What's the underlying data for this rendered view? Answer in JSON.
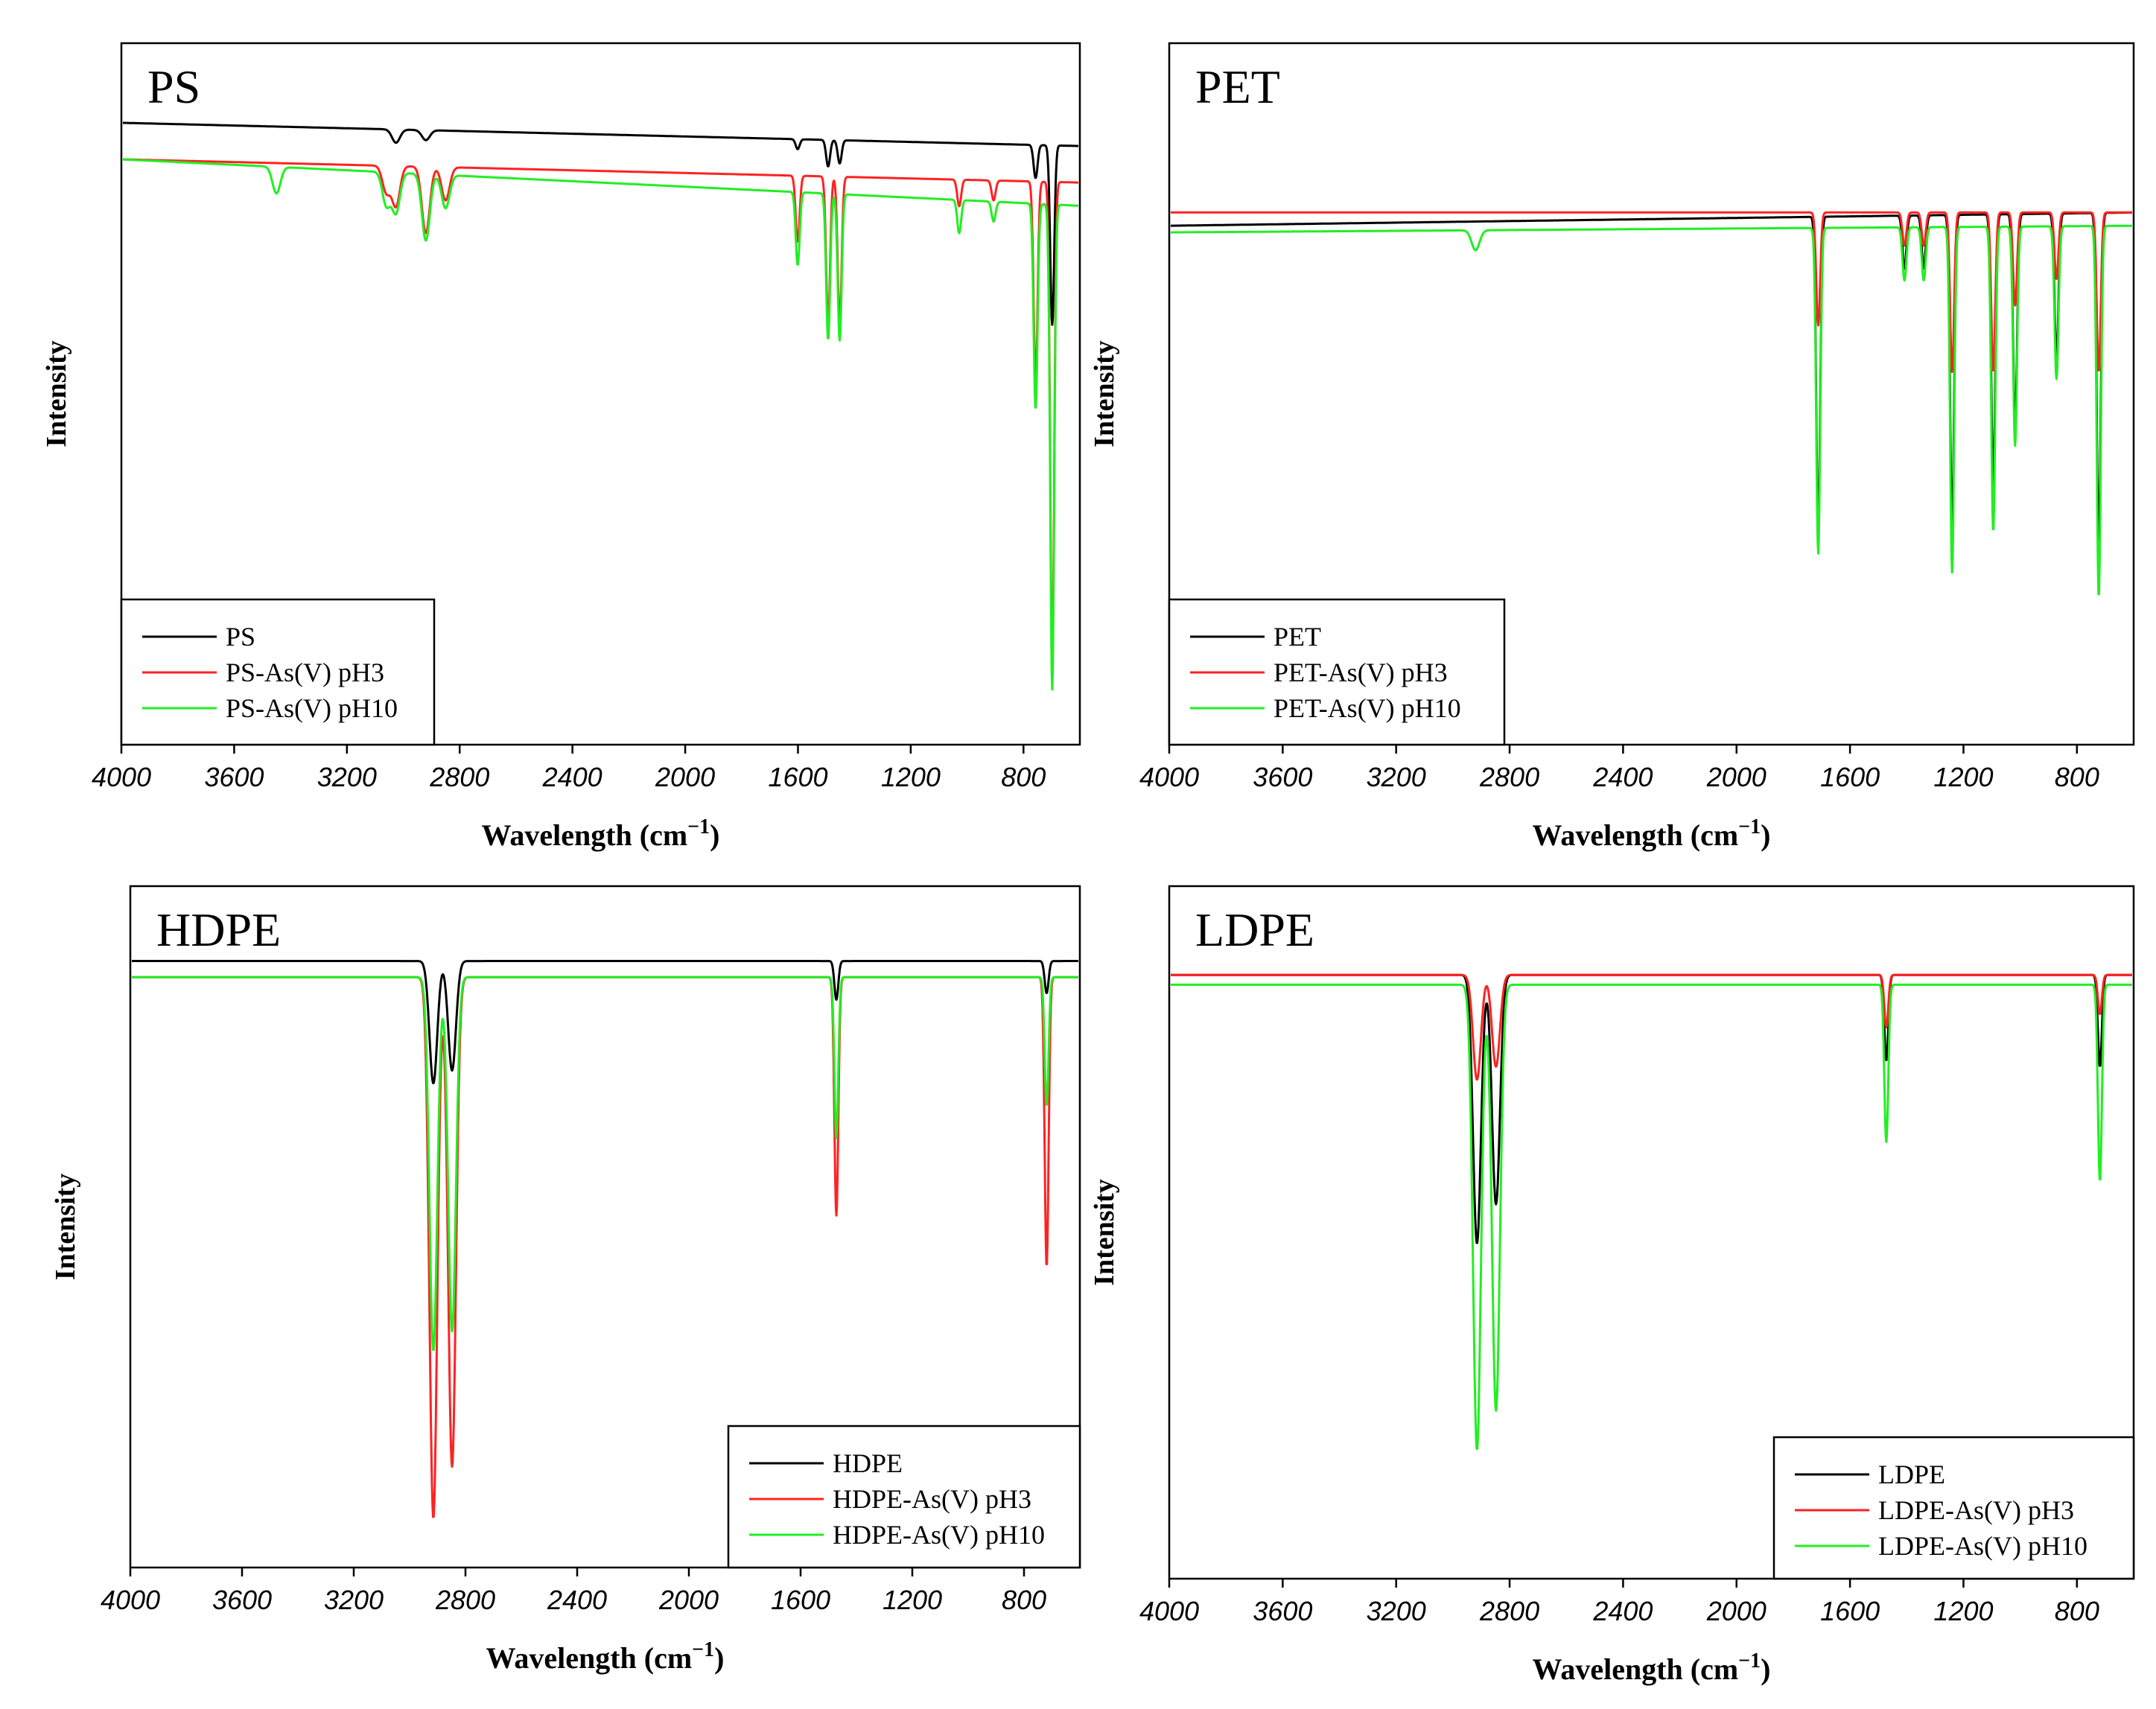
{
  "colors": {
    "pristine": "#000000",
    "ph3": "#ff2222",
    "ph10": "#22ee22"
  },
  "chart_data": [
    {
      "type": "line",
      "title": "PS",
      "xlabel": "Wavelength (cm",
      "xlabel_sup": "−1",
      "xlabel_close": ")",
      "ylabel": "Intensity",
      "xlim": [
        4000,
        600
      ],
      "ylim": [
        0,
        1
      ],
      "xticks": [
        4000,
        3600,
        3200,
        2800,
        2400,
        2000,
        1600,
        1200,
        800
      ],
      "legend_position": "bottom-left",
      "series": [
        {
          "name": "PS",
          "color_key": "pristine",
          "baseline": 0.925,
          "slope": -0.035,
          "peaks": [
            [
              3026,
              0.02
            ],
            [
              2920,
              0.015
            ],
            [
              1601,
              0.015
            ],
            [
              1493,
              0.04
            ],
            [
              1452,
              0.035
            ],
            [
              757,
              0.05
            ],
            [
              698,
              0.27
            ]
          ]
        },
        {
          "name": "PS-As(V) pH3",
          "color_key": "ph3",
          "baseline": 0.87,
          "slope": -0.035,
          "peaks": [
            [
              3060,
              0.04
            ],
            [
              3026,
              0.06
            ],
            [
              2920,
              0.1
            ],
            [
              2850,
              0.05
            ],
            [
              1601,
              0.1
            ],
            [
              1493,
              0.22
            ],
            [
              1452,
              0.22
            ],
            [
              1028,
              0.04
            ],
            [
              906,
              0.03
            ],
            [
              757,
              0.3
            ],
            [
              698,
              0.73
            ]
          ]
        },
        {
          "name": "PS-As(V) pH10",
          "color_key": "ph10",
          "baseline": 0.87,
          "slope": -0.07,
          "peaks": [
            [
              3450,
              0.04
            ],
            [
              3060,
              0.05
            ],
            [
              3026,
              0.06
            ],
            [
              2920,
              0.1
            ],
            [
              2850,
              0.05
            ],
            [
              1601,
              0.11
            ],
            [
              1493,
              0.22
            ],
            [
              1452,
              0.22
            ],
            [
              1028,
              0.05
            ],
            [
              906,
              0.03
            ],
            [
              757,
              0.31
            ],
            [
              698,
              0.73
            ]
          ]
        }
      ]
    },
    {
      "type": "line",
      "title": "PET",
      "xlabel": "Wavelength (cm",
      "xlabel_sup": "−1",
      "xlabel_close": ")",
      "ylabel": "Intensity",
      "xlim": [
        4000,
        600
      ],
      "ylim": [
        0,
        1
      ],
      "xticks": [
        4000,
        3600,
        3200,
        2800,
        2400,
        2000,
        1600,
        1200,
        800
      ],
      "legend_position": "bottom-left",
      "series": [
        {
          "name": "PET",
          "color_key": "pristine",
          "baseline": 0.77,
          "slope": 0.02,
          "peaks": [
            [
              1712,
              0.47
            ],
            [
              1408,
              0.08
            ],
            [
              1340,
              0.08
            ],
            [
              1240,
              0.47
            ],
            [
              1095,
              0.41
            ],
            [
              1018,
              0.32
            ],
            [
              872,
              0.22
            ],
            [
              723,
              0.5
            ]
          ]
        },
        {
          "name": "PET-As(V) pH3",
          "color_key": "ph3",
          "baseline": 0.79,
          "slope": 0.0,
          "peaks": [
            [
              1712,
              0.17
            ],
            [
              1408,
              0.05
            ],
            [
              1340,
              0.05
            ],
            [
              1240,
              0.24
            ],
            [
              1095,
              0.24
            ],
            [
              1018,
              0.14
            ],
            [
              872,
              0.1
            ],
            [
              723,
              0.24
            ]
          ]
        },
        {
          "name": "PET-As(V) pH10",
          "color_key": "ph10",
          "baseline": 0.76,
          "slope": 0.01,
          "peaks": [
            [
              2920,
              0.03
            ],
            [
              1712,
              0.49
            ],
            [
              1408,
              0.08
            ],
            [
              1340,
              0.08
            ],
            [
              1240,
              0.52
            ],
            [
              1095,
              0.46
            ],
            [
              1018,
              0.33
            ],
            [
              872,
              0.23
            ],
            [
              723,
              0.56
            ]
          ]
        }
      ]
    },
    {
      "type": "line",
      "title": "HDPE",
      "xlabel": "Wavelength (cm",
      "xlabel_sup": "−1",
      "xlabel_close": ")",
      "ylabel": "Intensity",
      "xlim": [
        4000,
        600
      ],
      "ylim": [
        0,
        1
      ],
      "xticks": [
        4000,
        3600,
        3200,
        2800,
        2400,
        2000,
        1600,
        1200,
        800
      ],
      "legend_position": "bottom-right",
      "series": [
        {
          "name": "HDPE",
          "color_key": "pristine",
          "baseline": 0.93,
          "slope": 0.0,
          "peaks": [
            [
              2915,
              0.19
            ],
            [
              2848,
              0.17
            ],
            [
              1472,
              0.06
            ],
            [
              719,
              0.05
            ]
          ]
        },
        {
          "name": "HDPE-As(V) pH3",
          "color_key": "ph3",
          "baseline": 0.905,
          "slope": 0.0,
          "peaks": [
            [
              2915,
              0.84
            ],
            [
              2848,
              0.76
            ],
            [
              1472,
              0.37
            ],
            [
              719,
              0.45
            ]
          ]
        },
        {
          "name": "HDPE-As(V) pH10",
          "color_key": "ph10",
          "baseline": 0.905,
          "slope": 0.0,
          "peaks": [
            [
              2915,
              0.58
            ],
            [
              2848,
              0.55
            ],
            [
              1472,
              0.25
            ],
            [
              719,
              0.2
            ]
          ]
        }
      ]
    },
    {
      "type": "line",
      "title": "LDPE",
      "xlabel": "Wavelength (cm",
      "xlabel_sup": "−1",
      "xlabel_close": ")",
      "ylabel": "Intensity",
      "xlim": [
        4000,
        600
      ],
      "ylim": [
        0,
        1
      ],
      "xticks": [
        4000,
        3600,
        3200,
        2800,
        2400,
        2000,
        1600,
        1200,
        800
      ],
      "legend_position": "bottom-right",
      "series": [
        {
          "name": "LDPE",
          "color_key": "pristine",
          "baseline": 0.91,
          "slope": 0.0,
          "peaks": [
            [
              2915,
              0.41
            ],
            [
              2848,
              0.35
            ],
            [
              1472,
              0.13
            ],
            [
              719,
              0.14
            ]
          ]
        },
        {
          "name": "LDPE-As(V) pH3",
          "color_key": "ph3",
          "baseline": 0.91,
          "slope": 0.0,
          "peaks": [
            [
              2915,
              0.16
            ],
            [
              2848,
              0.14
            ],
            [
              1472,
              0.08
            ],
            [
              719,
              0.06
            ]
          ]
        },
        {
          "name": "LDPE-As(V) pH10",
          "color_key": "ph10",
          "baseline": 0.895,
          "slope": 0.0,
          "peaks": [
            [
              2915,
              0.71
            ],
            [
              2848,
              0.65
            ],
            [
              1472,
              0.24
            ],
            [
              719,
              0.3
            ]
          ]
        }
      ]
    }
  ]
}
